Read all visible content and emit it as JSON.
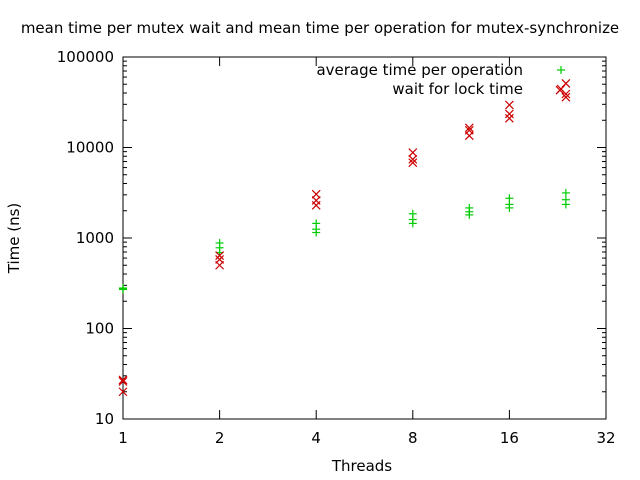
{
  "chart_data": {
    "type": "scatter",
    "title": "mean time per mutex wait and mean time per operation for mutex-synchronize",
    "xlabel": "Threads",
    "ylabel": "Time (ns)",
    "x_scale": "log2",
    "y_scale": "log10",
    "xlim": [
      1,
      32
    ],
    "ylim": [
      10,
      100000
    ],
    "x_ticks": [
      1,
      2,
      4,
      8,
      16,
      32
    ],
    "x_tick_labels": [
      "1",
      "2",
      "4",
      "8",
      "16",
      "32"
    ],
    "y_ticks": [
      10,
      100,
      1000,
      10000,
      100000
    ],
    "y_tick_labels": [
      "10",
      "100",
      "1000",
      "10000",
      "100000"
    ],
    "grid": false,
    "legend_position": "top-right",
    "series": [
      {
        "name": "average time per operation",
        "color": "#00cc00",
        "marker": "plus",
        "points": [
          {
            "x": 1,
            "y": 270
          },
          {
            "x": 1,
            "y": 275
          },
          {
            "x": 1,
            "y": 280
          },
          {
            "x": 2,
            "y": 690
          },
          {
            "x": 2,
            "y": 780
          },
          {
            "x": 2,
            "y": 880
          },
          {
            "x": 4,
            "y": 1150
          },
          {
            "x": 4,
            "y": 1250
          },
          {
            "x": 4,
            "y": 1450
          },
          {
            "x": 8,
            "y": 1450
          },
          {
            "x": 8,
            "y": 1600
          },
          {
            "x": 8,
            "y": 1850
          },
          {
            "x": 12,
            "y": 1800
          },
          {
            "x": 12,
            "y": 1950
          },
          {
            "x": 12,
            "y": 2150
          },
          {
            "x": 16,
            "y": 2150
          },
          {
            "x": 16,
            "y": 2350
          },
          {
            "x": 16,
            "y": 2750
          },
          {
            "x": 24,
            "y": 2350
          },
          {
            "x": 24,
            "y": 2650
          },
          {
            "x": 24,
            "y": 3150
          }
        ]
      },
      {
        "name": "wait for lock time",
        "color": "#cc0000",
        "marker": "cross",
        "points": [
          {
            "x": 1,
            "y": 20
          },
          {
            "x": 1,
            "y": 26
          },
          {
            "x": 1,
            "y": 27
          },
          {
            "x": 2,
            "y": 500
          },
          {
            "x": 2,
            "y": 580
          },
          {
            "x": 2,
            "y": 640
          },
          {
            "x": 4,
            "y": 2300
          },
          {
            "x": 4,
            "y": 2600
          },
          {
            "x": 4,
            "y": 3050
          },
          {
            "x": 8,
            "y": 6800
          },
          {
            "x": 8,
            "y": 7400
          },
          {
            "x": 8,
            "y": 8800
          },
          {
            "x": 12,
            "y": 13500
          },
          {
            "x": 12,
            "y": 15500
          },
          {
            "x": 12,
            "y": 16500
          },
          {
            "x": 16,
            "y": 21000
          },
          {
            "x": 16,
            "y": 23500
          },
          {
            "x": 16,
            "y": 29500
          },
          {
            "x": 23,
            "y": 43000
          },
          {
            "x": 24,
            "y": 36000
          },
          {
            "x": 24,
            "y": 39000
          },
          {
            "x": 24,
            "y": 51000
          }
        ]
      }
    ]
  }
}
